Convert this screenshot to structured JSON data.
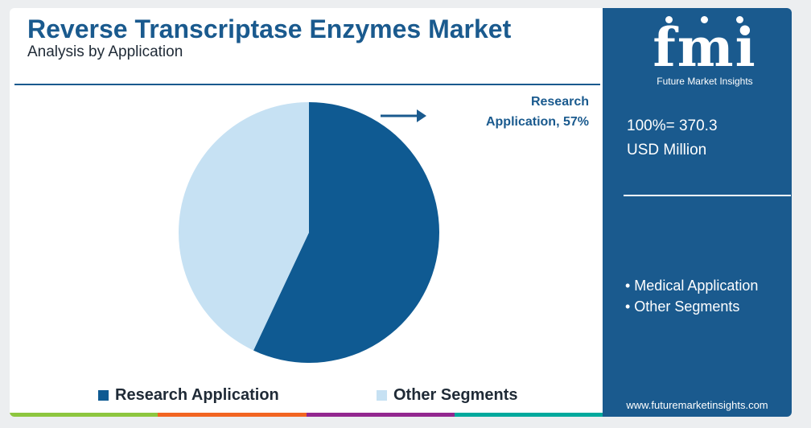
{
  "header": {
    "title": "Reverse Transcriptase Enzymes Market",
    "subtitle": "Analysis by Application"
  },
  "chart_data": {
    "type": "pie",
    "categories": [
      "Research Application",
      "Other Segments"
    ],
    "values": [
      57,
      43
    ],
    "unit": "%",
    "colors": [
      "#0f5a92",
      "#c6e1f3"
    ],
    "legend_position": "bottom",
    "annotation": "Research Application, 57%"
  },
  "callout": {
    "line1": "Research",
    "line2": "Application, 57%"
  },
  "legend": {
    "item1": "Research Application",
    "item2": "Other Segments"
  },
  "sidebar": {
    "logo_text": "fmi",
    "logo_sub": "Future Market Insights",
    "total_line1": "100%= 370.3",
    "total_line2": "USD Million",
    "bullets": [
      "• Medical Application",
      "• Other Segments"
    ],
    "website": "www.futuremarketinsights.com"
  },
  "colors": {
    "accent": "#1a5a8e",
    "bottom_bar": [
      "#8dc63f",
      "#f26522",
      "#92278f",
      "#00a99d"
    ]
  }
}
